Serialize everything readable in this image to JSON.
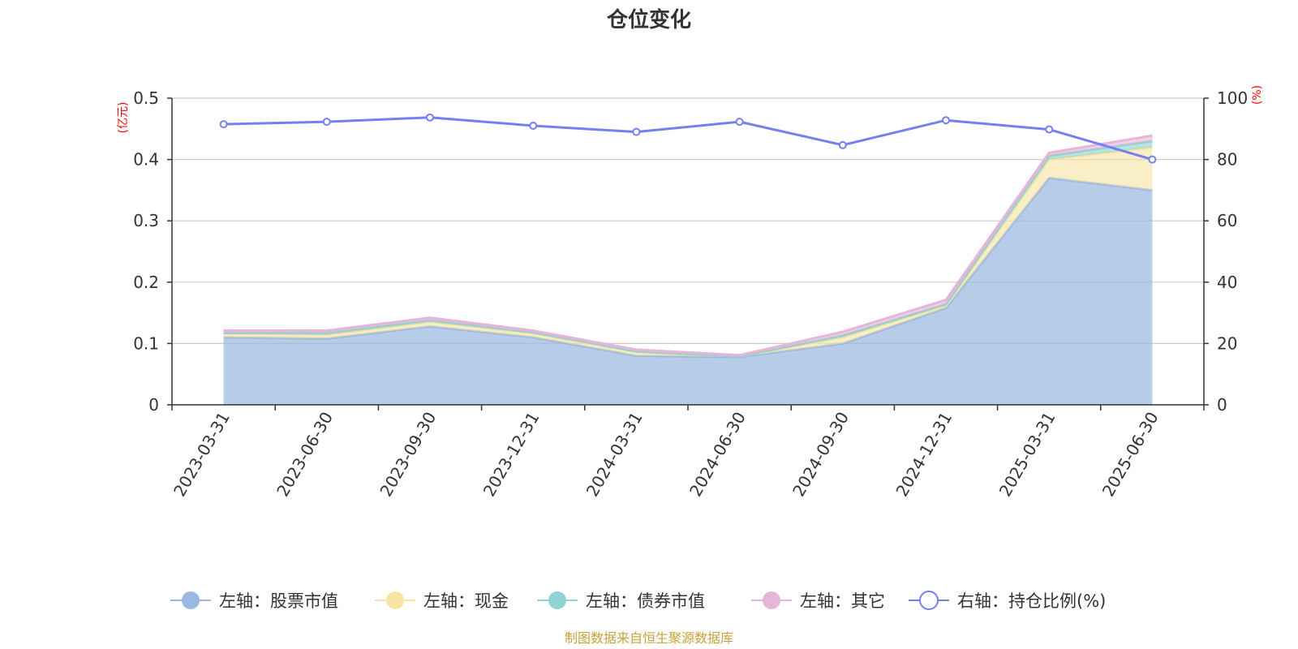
{
  "chart_data": {
    "type": "area",
    "title": "仓位变化",
    "categories": [
      "2023-03-31",
      "2023-06-30",
      "2023-09-30",
      "2023-12-31",
      "2024-03-31",
      "2024-06-30",
      "2024-09-30",
      "2024-12-31",
      "2025-03-31",
      "2025-06-30"
    ],
    "left_axis": {
      "unit": "(亿元)",
      "ylim": [
        0,
        0.5
      ],
      "ticks": [
        "0",
        "0.1",
        "0.2",
        "0.3",
        "0.4",
        "0.5"
      ],
      "stacked": true
    },
    "right_axis": {
      "unit": "(%)",
      "ylim": [
        0,
        100
      ],
      "ticks": [
        "0",
        "20",
        "40",
        "60",
        "80",
        "100"
      ]
    },
    "series": [
      {
        "name": "左轴：股票市值",
        "axis": "left",
        "type": "area",
        "color": "#9bb8e0",
        "values": [
          0.11,
          0.108,
          0.128,
          0.11,
          0.08,
          0.078,
          0.1,
          0.158,
          0.37,
          0.35
        ]
      },
      {
        "name": "左轴：现金",
        "axis": "left",
        "type": "area",
        "color": "#f7e4a3",
        "values": [
          0.006,
          0.006,
          0.007,
          0.006,
          0.006,
          0.001,
          0.01,
          0.004,
          0.03,
          0.07
        ]
      },
      {
        "name": "左轴：债券市值",
        "axis": "left",
        "type": "area",
        "color": "#8fd3d3",
        "values": [
          0.001,
          0.003,
          0.003,
          0.002,
          0.001,
          0.0,
          0.003,
          0.002,
          0.006,
          0.01
        ]
      },
      {
        "name": "左轴：其它",
        "axis": "left",
        "type": "area",
        "color": "#e6b5d8",
        "values": [
          0.004,
          0.004,
          0.004,
          0.003,
          0.003,
          0.002,
          0.006,
          0.007,
          0.005,
          0.009
        ]
      },
      {
        "name": "右轴：持仓比例(%)",
        "axis": "right",
        "type": "line",
        "color": "#7480ee",
        "values": [
          91.5,
          92.3,
          93.7,
          91.0,
          89.0,
          92.3,
          84.7,
          92.8,
          89.8,
          80.0
        ]
      }
    ],
    "grid": true,
    "legend_position": "bottom"
  },
  "source": "制图数据来自恒生聚源数据库"
}
